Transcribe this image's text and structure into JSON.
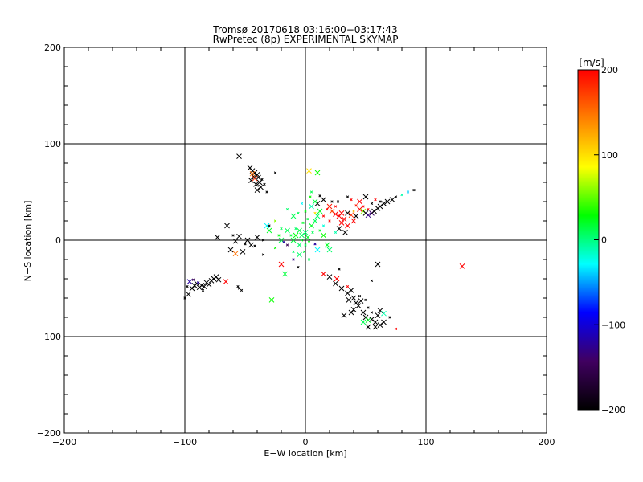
{
  "chart_data": {
    "type": "scatter",
    "title": "Tromsø 20170618 03:16:00−03:17:43",
    "subtitle": "RwPretec (8p) EXPERIMENTAL SKYMAP",
    "xlabel": "E−W location [km]",
    "ylabel": "N−S location [km]",
    "xlim": [
      -200,
      200
    ],
    "ylim": [
      -200,
      200
    ],
    "xticks": [
      -200,
      -100,
      0,
      100,
      200
    ],
    "yticks": [
      -200,
      -100,
      0,
      100,
      200
    ],
    "xtick_labels": [
      "−200",
      "−100",
      "0",
      "100",
      "200"
    ],
    "ytick_labels": [
      "−200",
      "−100",
      "0",
      "100",
      "200"
    ],
    "grid": true,
    "markers": [
      "x (large)",
      "x (small)"
    ],
    "colorbar": {
      "label": "[m/s]",
      "range": [
        -200,
        200
      ],
      "ticks": [
        -200,
        -100,
        0,
        100,
        200
      ],
      "tick_labels": [
        "−200",
        "−100",
        "0",
        "100",
        "200"
      ],
      "colors": [
        "#000000",
        "#400060",
        "#0000ff",
        "#00ffff",
        "#00ff00",
        "#ffff00",
        "#ff8000",
        "#ff0000"
      ]
    },
    "points": [
      {
        "x": -55,
        "y": 87,
        "v": -200,
        "s": "L"
      },
      {
        "x": -46,
        "y": 75,
        "v": -200,
        "s": "L"
      },
      {
        "x": -44,
        "y": 72,
        "v": -200,
        "s": "L"
      },
      {
        "x": -42,
        "y": 70,
        "v": -200,
        "s": "L"
      },
      {
        "x": -40,
        "y": 68,
        "v": -200,
        "s": "L"
      },
      {
        "x": -43,
        "y": 66,
        "v": -200,
        "s": "L"
      },
      {
        "x": -39,
        "y": 65,
        "v": -200,
        "s": "L"
      },
      {
        "x": -45,
        "y": 62,
        "v": -200,
        "s": "L"
      },
      {
        "x": -38,
        "y": 60,
        "v": -200,
        "s": "L"
      },
      {
        "x": -41,
        "y": 58,
        "v": -200,
        "s": "L"
      },
      {
        "x": -37,
        "y": 55,
        "v": -200,
        "s": "L"
      },
      {
        "x": -40,
        "y": 52,
        "v": -200,
        "s": "L"
      },
      {
        "x": -42,
        "y": 64,
        "v": 180,
        "s": "L"
      },
      {
        "x": -44,
        "y": 69,
        "v": 150,
        "s": "L"
      },
      {
        "x": -36,
        "y": 63,
        "v": -200,
        "s": "S"
      },
      {
        "x": -34,
        "y": 58,
        "v": -200,
        "s": "S"
      },
      {
        "x": -32,
        "y": 50,
        "v": -200,
        "s": "S"
      },
      {
        "x": -25,
        "y": 70,
        "v": -200,
        "s": "S"
      },
      {
        "x": -65,
        "y": 15,
        "v": -200,
        "s": "L"
      },
      {
        "x": -73,
        "y": 3,
        "v": -200,
        "s": "L"
      },
      {
        "x": -62,
        "y": -10,
        "v": -200,
        "s": "L"
      },
      {
        "x": -52,
        "y": -12,
        "v": -200,
        "s": "L"
      },
      {
        "x": -58,
        "y": -1,
        "v": -200,
        "s": "L"
      },
      {
        "x": -55,
        "y": 4,
        "v": -200,
        "s": "L"
      },
      {
        "x": -48,
        "y": 0,
        "v": -200,
        "s": "L"
      },
      {
        "x": -45,
        "y": -5,
        "v": -200,
        "s": "L"
      },
      {
        "x": -42,
        "y": -6,
        "v": -200,
        "s": "S"
      },
      {
        "x": -50,
        "y": -4,
        "v": -200,
        "s": "S"
      },
      {
        "x": -60,
        "y": 5,
        "v": -200,
        "s": "S"
      },
      {
        "x": -58,
        "y": -14,
        "v": 150,
        "s": "L"
      },
      {
        "x": -40,
        "y": 3,
        "v": -200,
        "s": "L"
      },
      {
        "x": -35,
        "y": 0,
        "v": -200,
        "s": "S"
      },
      {
        "x": -30,
        "y": 15,
        "v": -200,
        "s": "S"
      },
      {
        "x": -100,
        "y": -60,
        "v": -200,
        "s": "S"
      },
      {
        "x": -97,
        "y": -56,
        "v": -200,
        "s": "L"
      },
      {
        "x": -94,
        "y": -50,
        "v": -200,
        "s": "L"
      },
      {
        "x": -92,
        "y": -47,
        "v": -200,
        "s": "L"
      },
      {
        "x": -90,
        "y": -45,
        "v": -200,
        "s": "L"
      },
      {
        "x": -88,
        "y": -49,
        "v": -200,
        "s": "L"
      },
      {
        "x": -86,
        "y": -47,
        "v": -200,
        "s": "L"
      },
      {
        "x": -84,
        "y": -48,
        "v": -200,
        "s": "L"
      },
      {
        "x": -82,
        "y": -44,
        "v": -200,
        "s": "L"
      },
      {
        "x": -80,
        "y": -46,
        "v": -200,
        "s": "L"
      },
      {
        "x": -78,
        "y": -42,
        "v": -200,
        "s": "L"
      },
      {
        "x": -76,
        "y": -40,
        "v": -200,
        "s": "L"
      },
      {
        "x": -74,
        "y": -38,
        "v": -200,
        "s": "L"
      },
      {
        "x": -72,
        "y": -41,
        "v": -200,
        "s": "L"
      },
      {
        "x": -96,
        "y": -43,
        "v": -120,
        "s": "L"
      },
      {
        "x": -93,
        "y": -41,
        "v": -150,
        "s": "S"
      },
      {
        "x": -89,
        "y": -44,
        "v": -120,
        "s": "S"
      },
      {
        "x": -66,
        "y": -43,
        "v": 200,
        "s": "L"
      },
      {
        "x": -55,
        "y": -50,
        "v": -200,
        "s": "S"
      },
      {
        "x": -53,
        "y": -52,
        "v": -200,
        "s": "S"
      },
      {
        "x": -56,
        "y": -48,
        "v": -200,
        "s": "S"
      },
      {
        "x": -98,
        "y": -48,
        "v": -200,
        "s": "S"
      },
      {
        "x": -85,
        "y": -52,
        "v": -200,
        "s": "S"
      },
      {
        "x": 10,
        "y": 38,
        "v": -200,
        "s": "L"
      },
      {
        "x": 15,
        "y": 42,
        "v": -200,
        "s": "L"
      },
      {
        "x": 20,
        "y": 35,
        "v": 190,
        "s": "L"
      },
      {
        "x": 22,
        "y": 30,
        "v": 170,
        "s": "L"
      },
      {
        "x": 25,
        "y": 27,
        "v": 200,
        "s": "L"
      },
      {
        "x": 28,
        "y": 25,
        "v": 200,
        "s": "L"
      },
      {
        "x": 30,
        "y": 28,
        "v": 200,
        "s": "L"
      },
      {
        "x": 32,
        "y": 22,
        "v": 200,
        "s": "L"
      },
      {
        "x": 35,
        "y": 28,
        "v": -200,
        "s": "L"
      },
      {
        "x": 38,
        "y": 26,
        "v": 180,
        "s": "L"
      },
      {
        "x": 40,
        "y": 20,
        "v": 200,
        "s": "L"
      },
      {
        "x": 42,
        "y": 25,
        "v": -200,
        "s": "L"
      },
      {
        "x": 45,
        "y": 32,
        "v": 200,
        "s": "L"
      },
      {
        "x": 48,
        "y": 30,
        "v": 60,
        "s": "L"
      },
      {
        "x": 50,
        "y": 28,
        "v": -200,
        "s": "L"
      },
      {
        "x": 52,
        "y": 26,
        "v": -130,
        "s": "L"
      },
      {
        "x": 55,
        "y": 28,
        "v": -140,
        "s": "L"
      },
      {
        "x": 57,
        "y": 30,
        "v": -200,
        "s": "L"
      },
      {
        "x": 60,
        "y": 33,
        "v": -200,
        "s": "L"
      },
      {
        "x": 62,
        "y": 35,
        "v": -200,
        "s": "L"
      },
      {
        "x": 65,
        "y": 38,
        "v": -200,
        "s": "L"
      },
      {
        "x": 68,
        "y": 40,
        "v": -200,
        "s": "L"
      },
      {
        "x": 72,
        "y": 42,
        "v": -200,
        "s": "L"
      },
      {
        "x": 75,
        "y": 45,
        "v": -200,
        "s": "S"
      },
      {
        "x": 80,
        "y": 47,
        "v": -10,
        "s": "S"
      },
      {
        "x": 85,
        "y": 50,
        "v": -40,
        "s": "S"
      },
      {
        "x": 90,
        "y": 52,
        "v": -200,
        "s": "S"
      },
      {
        "x": 50,
        "y": 45,
        "v": -200,
        "s": "L"
      },
      {
        "x": 45,
        "y": 40,
        "v": 200,
        "s": "L"
      },
      {
        "x": 30,
        "y": 18,
        "v": 200,
        "s": "L"
      },
      {
        "x": 35,
        "y": 15,
        "v": 200,
        "s": "L"
      },
      {
        "x": 28,
        "y": 12,
        "v": -200,
        "s": "L"
      },
      {
        "x": 33,
        "y": 8,
        "v": -200,
        "s": "L"
      },
      {
        "x": 25,
        "y": 35,
        "v": 200,
        "s": "S"
      },
      {
        "x": 18,
        "y": 32,
        "v": 200,
        "s": "S"
      },
      {
        "x": 22,
        "y": 40,
        "v": -200,
        "s": "S"
      },
      {
        "x": 12,
        "y": 46,
        "v": -200,
        "s": "S"
      },
      {
        "x": 40,
        "y": 30,
        "v": 120,
        "s": "S"
      },
      {
        "x": 55,
        "y": 38,
        "v": -200,
        "s": "S"
      },
      {
        "x": 58,
        "y": 42,
        "v": 200,
        "s": "S"
      },
      {
        "x": 48,
        "y": 35,
        "v": 200,
        "s": "S"
      },
      {
        "x": 42,
        "y": 36,
        "v": 190,
        "s": "S"
      },
      {
        "x": 27,
        "y": 40,
        "v": -200,
        "s": "S"
      },
      {
        "x": 15,
        "y": 25,
        "v": 200,
        "s": "S"
      },
      {
        "x": 20,
        "y": 20,
        "v": 200,
        "s": "S"
      },
      {
        "x": 38,
        "y": 42,
        "v": 200,
        "s": "S"
      },
      {
        "x": 52,
        "y": 32,
        "v": 200,
        "s": "S"
      },
      {
        "x": 62,
        "y": 40,
        "v": -200,
        "s": "S"
      },
      {
        "x": 35,
        "y": 45,
        "v": -200,
        "s": "S"
      },
      {
        "x": 15,
        "y": -35,
        "v": 200,
        "s": "L"
      },
      {
        "x": 20,
        "y": -38,
        "v": -200,
        "s": "L"
      },
      {
        "x": 26,
        "y": -40,
        "v": 200,
        "s": "L"
      },
      {
        "x": 25,
        "y": -45,
        "v": -200,
        "s": "L"
      },
      {
        "x": 30,
        "y": -50,
        "v": -200,
        "s": "L"
      },
      {
        "x": 35,
        "y": -55,
        "v": -200,
        "s": "L"
      },
      {
        "x": 38,
        "y": -52,
        "v": -200,
        "s": "L"
      },
      {
        "x": 40,
        "y": -60,
        "v": -200,
        "s": "L"
      },
      {
        "x": 36,
        "y": -62,
        "v": -200,
        "s": "L"
      },
      {
        "x": 42,
        "y": -65,
        "v": -200,
        "s": "L"
      },
      {
        "x": 44,
        "y": -68,
        "v": -200,
        "s": "L"
      },
      {
        "x": 46,
        "y": -63,
        "v": -200,
        "s": "L"
      },
      {
        "x": 40,
        "y": -72,
        "v": -200,
        "s": "L"
      },
      {
        "x": 38,
        "y": -75,
        "v": -200,
        "s": "L"
      },
      {
        "x": 48,
        "y": -75,
        "v": -200,
        "s": "L"
      },
      {
        "x": 50,
        "y": -80,
        "v": -200,
        "s": "L"
      },
      {
        "x": 52,
        "y": -83,
        "v": 20,
        "s": "L"
      },
      {
        "x": 48,
        "y": -85,
        "v": 10,
        "s": "L"
      },
      {
        "x": 55,
        "y": -82,
        "v": -200,
        "s": "L"
      },
      {
        "x": 58,
        "y": -85,
        "v": -200,
        "s": "L"
      },
      {
        "x": 60,
        "y": -78,
        "v": -200,
        "s": "L"
      },
      {
        "x": 62,
        "y": -73,
        "v": -200,
        "s": "L"
      },
      {
        "x": 65,
        "y": -76,
        "v": -10,
        "s": "L"
      },
      {
        "x": 62,
        "y": -88,
        "v": -200,
        "s": "L"
      },
      {
        "x": 65,
        "y": -85,
        "v": -200,
        "s": "L"
      },
      {
        "x": 32,
        "y": -78,
        "v": -200,
        "s": "L"
      },
      {
        "x": 52,
        "y": -90,
        "v": -200,
        "s": "L"
      },
      {
        "x": 58,
        "y": -90,
        "v": -200,
        "s": "L"
      },
      {
        "x": 70,
        "y": -80,
        "v": -200,
        "s": "S"
      },
      {
        "x": 75,
        "y": -92,
        "v": 200,
        "s": "S"
      },
      {
        "x": 60,
        "y": -25,
        "v": -200,
        "s": "L"
      },
      {
        "x": 130,
        "y": -27,
        "v": 200,
        "s": "L"
      },
      {
        "x": 45,
        "y": -58,
        "v": -200,
        "s": "S"
      },
      {
        "x": 52,
        "y": -70,
        "v": -200,
        "s": "S"
      },
      {
        "x": 55,
        "y": -75,
        "v": -200,
        "s": "S"
      },
      {
        "x": 50,
        "y": -62,
        "v": -200,
        "s": "S"
      },
      {
        "x": 28,
        "y": -30,
        "v": -200,
        "s": "S"
      },
      {
        "x": 55,
        "y": -42,
        "v": -200,
        "s": "S"
      },
      {
        "x": 35,
        "y": -48,
        "v": 200,
        "s": "S"
      },
      {
        "x": -5,
        "y": 10,
        "v": 15,
        "s": "L"
      },
      {
        "x": -3,
        "y": 5,
        "v": 10,
        "s": "L"
      },
      {
        "x": 0,
        "y": 8,
        "v": 5,
        "s": "L"
      },
      {
        "x": 2,
        "y": 3,
        "v": 20,
        "s": "L"
      },
      {
        "x": -8,
        "y": 5,
        "v": 25,
        "s": "L"
      },
      {
        "x": -10,
        "y": 0,
        "v": 15,
        "s": "L"
      },
      {
        "x": -15,
        "y": 10,
        "v": 10,
        "s": "L"
      },
      {
        "x": -20,
        "y": 0,
        "v": 10,
        "s": "L"
      },
      {
        "x": -5,
        "y": -5,
        "v": 5,
        "s": "L"
      },
      {
        "x": 5,
        "y": 15,
        "v": 20,
        "s": "L"
      },
      {
        "x": 8,
        "y": 20,
        "v": 10,
        "s": "L"
      },
      {
        "x": 10,
        "y": 25,
        "v": 5,
        "s": "L"
      },
      {
        "x": 12,
        "y": 30,
        "v": 20,
        "s": "L"
      },
      {
        "x": 5,
        "y": 35,
        "v": -10,
        "s": "L"
      },
      {
        "x": 8,
        "y": 40,
        "v": 15,
        "s": "L"
      },
      {
        "x": -10,
        "y": 25,
        "v": 10,
        "s": "L"
      },
      {
        "x": -5,
        "y": -15,
        "v": 5,
        "s": "L"
      },
      {
        "x": 15,
        "y": 5,
        "v": 30,
        "s": "L"
      },
      {
        "x": 18,
        "y": -5,
        "v": 20,
        "s": "L"
      },
      {
        "x": 10,
        "y": -10,
        "v": -30,
        "s": "L"
      },
      {
        "x": 20,
        "y": -10,
        "v": 5,
        "s": "L"
      },
      {
        "x": -15,
        "y": -5,
        "v": -150,
        "s": "S"
      },
      {
        "x": -30,
        "y": 10,
        "v": 20,
        "s": "L"
      },
      {
        "x": -20,
        "y": -25,
        "v": 200,
        "s": "L"
      },
      {
        "x": -17,
        "y": -35,
        "v": 15,
        "s": "L"
      },
      {
        "x": -28,
        "y": -62,
        "v": 30,
        "s": "L"
      },
      {
        "x": -32,
        "y": 15,
        "v": -30,
        "s": "L"
      },
      {
        "x": 0,
        "y": -5,
        "v": 10,
        "s": "S"
      },
      {
        "x": -3,
        "y": 0,
        "v": 20,
        "s": "S"
      },
      {
        "x": 3,
        "y": -2,
        "v": 25,
        "s": "S"
      },
      {
        "x": 6,
        "y": 8,
        "v": 10,
        "s": "S"
      },
      {
        "x": -8,
        "y": 12,
        "v": 5,
        "s": "S"
      },
      {
        "x": -12,
        "y": 5,
        "v": 15,
        "s": "S"
      },
      {
        "x": -18,
        "y": -2,
        "v": -120,
        "s": "S"
      },
      {
        "x": -22,
        "y": 5,
        "v": 25,
        "s": "S"
      },
      {
        "x": -25,
        "y": -8,
        "v": 30,
        "s": "S"
      },
      {
        "x": -2,
        "y": 18,
        "v": 20,
        "s": "S"
      },
      {
        "x": 2,
        "y": 22,
        "v": 15,
        "s": "S"
      },
      {
        "x": -6,
        "y": 28,
        "v": 10,
        "s": "S"
      },
      {
        "x": 0,
        "y": 30,
        "v": 25,
        "s": "S"
      },
      {
        "x": 4,
        "y": 45,
        "v": 30,
        "s": "S"
      },
      {
        "x": -3,
        "y": 38,
        "v": -30,
        "s": "S"
      },
      {
        "x": -15,
        "y": 32,
        "v": 5,
        "s": "S"
      },
      {
        "x": 12,
        "y": 10,
        "v": 20,
        "s": "S"
      },
      {
        "x": 15,
        "y": 15,
        "v": -20,
        "s": "S"
      },
      {
        "x": 8,
        "y": -4,
        "v": -120,
        "s": "S"
      },
      {
        "x": -1,
        "y": -12,
        "v": 15,
        "s": "S"
      },
      {
        "x": -10,
        "y": -20,
        "v": -130,
        "s": "S"
      },
      {
        "x": -6,
        "y": -28,
        "v": -200,
        "s": "S"
      },
      {
        "x": 3,
        "y": -20,
        "v": 10,
        "s": "S"
      },
      {
        "x": -20,
        "y": 12,
        "v": 10,
        "s": "S"
      },
      {
        "x": -25,
        "y": 20,
        "v": 60,
        "s": "S"
      },
      {
        "x": -10,
        "y": -12,
        "v": 5,
        "s": "S"
      },
      {
        "x": 5,
        "y": 50,
        "v": 10,
        "s": "S"
      },
      {
        "x": 8,
        "y": 28,
        "v": 100,
        "s": "S"
      },
      {
        "x": 25,
        "y": 8,
        "v": -10,
        "s": "S"
      },
      {
        "x": -35,
        "y": -15,
        "v": -200,
        "s": "S"
      },
      {
        "x": 3,
        "y": 72,
        "v": 100,
        "s": "L"
      },
      {
        "x": 10,
        "y": 70,
        "v": 30,
        "s": "L"
      }
    ]
  }
}
